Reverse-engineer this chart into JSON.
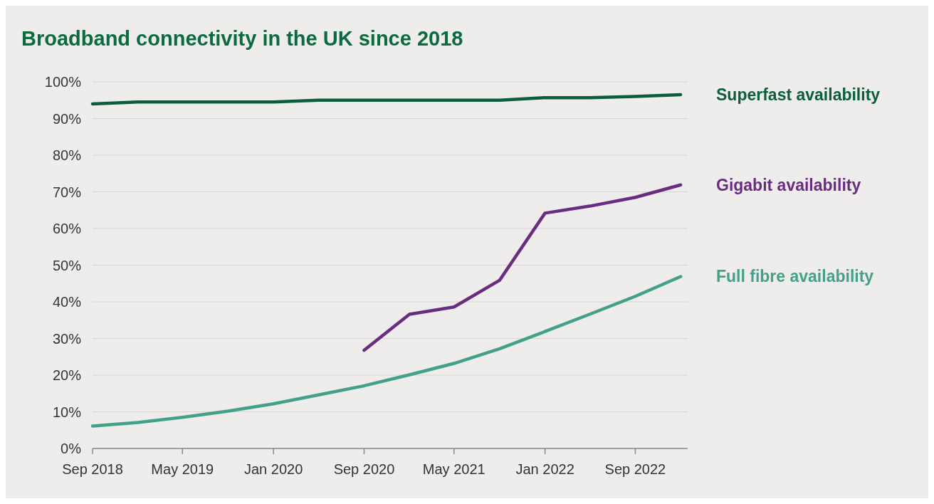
{
  "chart_data": {
    "type": "line",
    "title": "Broadband connectivity in the UK since 2018",
    "x": [
      "2018-09",
      "2019-01",
      "2019-05",
      "2019-09",
      "2020-01",
      "2020-05",
      "2020-09",
      "2021-01",
      "2021-05",
      "2021-09",
      "2022-01",
      "2022-05",
      "2022-09",
      "2023-01"
    ],
    "xlim": [
      "2018-09",
      "2023-01-20"
    ],
    "xticks": [
      {
        "value": "2018-09",
        "label": "Sep 2018"
      },
      {
        "value": "2019-05",
        "label": "May 2019"
      },
      {
        "value": "2020-01",
        "label": "Jan 2020"
      },
      {
        "value": "2020-09",
        "label": "Sep 2020"
      },
      {
        "value": "2021-05",
        "label": "May 2021"
      },
      {
        "value": "2022-01",
        "label": "Jan 2022"
      },
      {
        "value": "2022-09",
        "label": "Sep 2022"
      }
    ],
    "ylim": [
      0,
      100
    ],
    "yticks": [
      {
        "value": 0,
        "label": "0%"
      },
      {
        "value": 10,
        "label": "10%"
      },
      {
        "value": 20,
        "label": "20%"
      },
      {
        "value": 30,
        "label": "30%"
      },
      {
        "value": 40,
        "label": "40%"
      },
      {
        "value": 50,
        "label": "50%"
      },
      {
        "value": 60,
        "label": "60%"
      },
      {
        "value": 70,
        "label": "70%"
      },
      {
        "value": 80,
        "label": "80%"
      },
      {
        "value": 90,
        "label": "90%"
      },
      {
        "value": 100,
        "label": "100%"
      }
    ],
    "grid": "y",
    "series": [
      {
        "name": "Superfast availability",
        "color": "#0b5e3a",
        "values": [
          94,
          94.5,
          94.5,
          94.5,
          94.5,
          95,
          95,
          95,
          95,
          95,
          95.7,
          95.7,
          96,
          96.5
        ]
      },
      {
        "name": "Gigabit availability",
        "color": "#6a2c80",
        "values": [
          null,
          null,
          null,
          null,
          null,
          null,
          26.8,
          36.6,
          38.6,
          45.9,
          64.2,
          66.1,
          68.5,
          71.9
        ]
      },
      {
        "name": "Full fibre availability",
        "color": "#43a08b",
        "values": [
          6.1,
          7.1,
          8.5,
          10.2,
          12.2,
          14.6,
          17.1,
          20.1,
          23.2,
          27.2,
          31.9,
          36.6,
          41.5,
          46.9
        ]
      }
    ]
  }
}
